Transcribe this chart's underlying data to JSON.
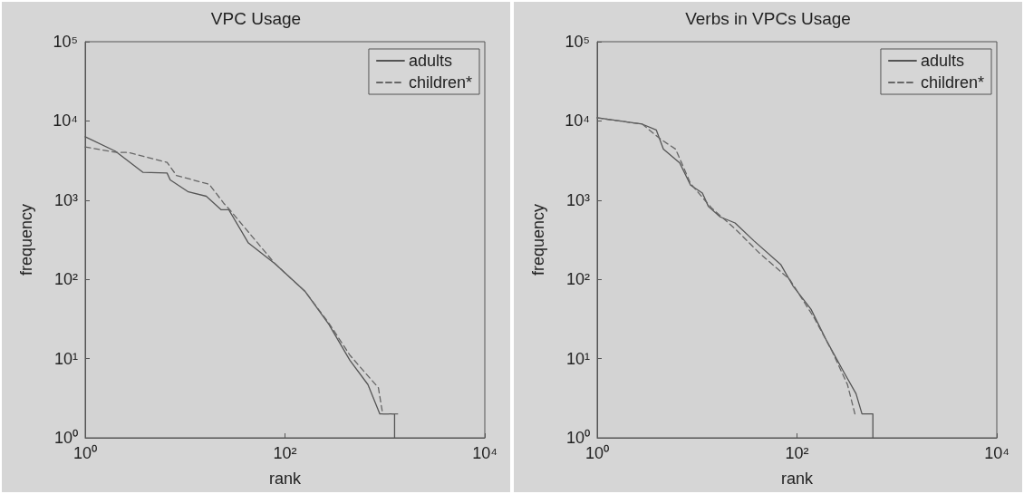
{
  "chart_data": [
    {
      "type": "line",
      "title": "VPC Usage",
      "xlabel": "rank",
      "ylabel": "frequency",
      "log": "xy",
      "grid": false,
      "legend": "top right",
      "marker": "none",
      "xlim": [
        1,
        10000
      ],
      "xticks": [
        {
          "value": 1,
          "label": "10⁰"
        },
        {
          "value": 100,
          "label": "10²"
        },
        {
          "value": 10000,
          "label": "10⁴"
        }
      ],
      "ylim": [
        1,
        100000
      ],
      "yticks": [
        {
          "value": 1,
          "label": "10⁰"
        },
        {
          "value": 10,
          "label": "10¹"
        },
        {
          "value": 100,
          "label": "10²"
        },
        {
          "value": 1000,
          "label": "10³"
        },
        {
          "value": 10000,
          "label": "10⁴"
        },
        {
          "value": 100000,
          "label": "10⁵"
        }
      ],
      "series": [
        {
          "name": "adults",
          "color": "#555555",
          "line_style": "solid",
          "x": [
            1,
            2,
            3.8,
            6.6,
            7.1,
            10.8,
            16.3,
            23,
            27.4,
            43,
            80,
            158,
            275,
            447,
            676,
            890,
            1250,
            1250
          ],
          "values": [
            6300,
            4150,
            2240,
            2200,
            1800,
            1270,
            1120,
            755,
            755,
            288,
            156,
            71,
            27,
            9.5,
            4.7,
            2,
            2,
            1
          ]
        },
        {
          "name": "children*",
          "color": "#666666",
          "line_style": "dashed",
          "x": [
            1,
            2.06,
            2.7,
            6.6,
            8.2,
            17.5,
            24.6,
            28,
            80,
            158,
            275,
            447,
            630,
            860,
            950,
            1350
          ],
          "values": [
            4700,
            4000,
            4000,
            3000,
            2050,
            1580,
            900,
            755,
            156,
            71,
            28,
            11,
            6.7,
            4.3,
            2,
            2
          ]
        }
      ]
    },
    {
      "type": "line",
      "title": "Verbs in VPCs Usage",
      "xlabel": "rank",
      "ylabel": "frequency",
      "log": "xy",
      "grid": false,
      "legend": "top right",
      "marker": "none",
      "xlim": [
        1,
        10000
      ],
      "xticks": [
        {
          "value": 1,
          "label": "10⁰"
        },
        {
          "value": 100,
          "label": "10²"
        },
        {
          "value": 10000,
          "label": "10⁴"
        }
      ],
      "ylim": [
        1,
        100000
      ],
      "yticks": [
        {
          "value": 1,
          "label": "10⁰"
        },
        {
          "value": 10,
          "label": "10¹"
        },
        {
          "value": 100,
          "label": "10²"
        },
        {
          "value": 1000,
          "label": "10³"
        },
        {
          "value": 10000,
          "label": "10⁴"
        },
        {
          "value": 100000,
          "label": "10⁵"
        }
      ],
      "series": [
        {
          "name": "adults",
          "color": "#555555",
          "line_style": "solid",
          "x": [
            1,
            2.83,
            3.9,
            4.6,
            6.7,
            8.6,
            11.3,
            13,
            17,
            24,
            37,
            69,
            91,
            138,
            195,
            295,
            390,
            447,
            575,
            575
          ],
          "values": [
            11000,
            9100,
            7700,
            4400,
            2950,
            1550,
            1230,
            830,
            615,
            515,
            307,
            153,
            83,
            42,
            17.4,
            6.7,
            3.6,
            2,
            2,
            1
          ]
        },
        {
          "name": "children*",
          "color": "#666666",
          "line_style": "dashed",
          "x": [
            1,
            2.83,
            4.3,
            6.1,
            8.6,
            13.9,
            24,
            42,
            85,
            150,
            225,
            320,
            380
          ],
          "values": [
            10900,
            9100,
            5900,
            4400,
            1620,
            800,
            435,
            215,
            99,
            32,
            12.3,
            4.7,
            2
          ]
        }
      ]
    }
  ]
}
